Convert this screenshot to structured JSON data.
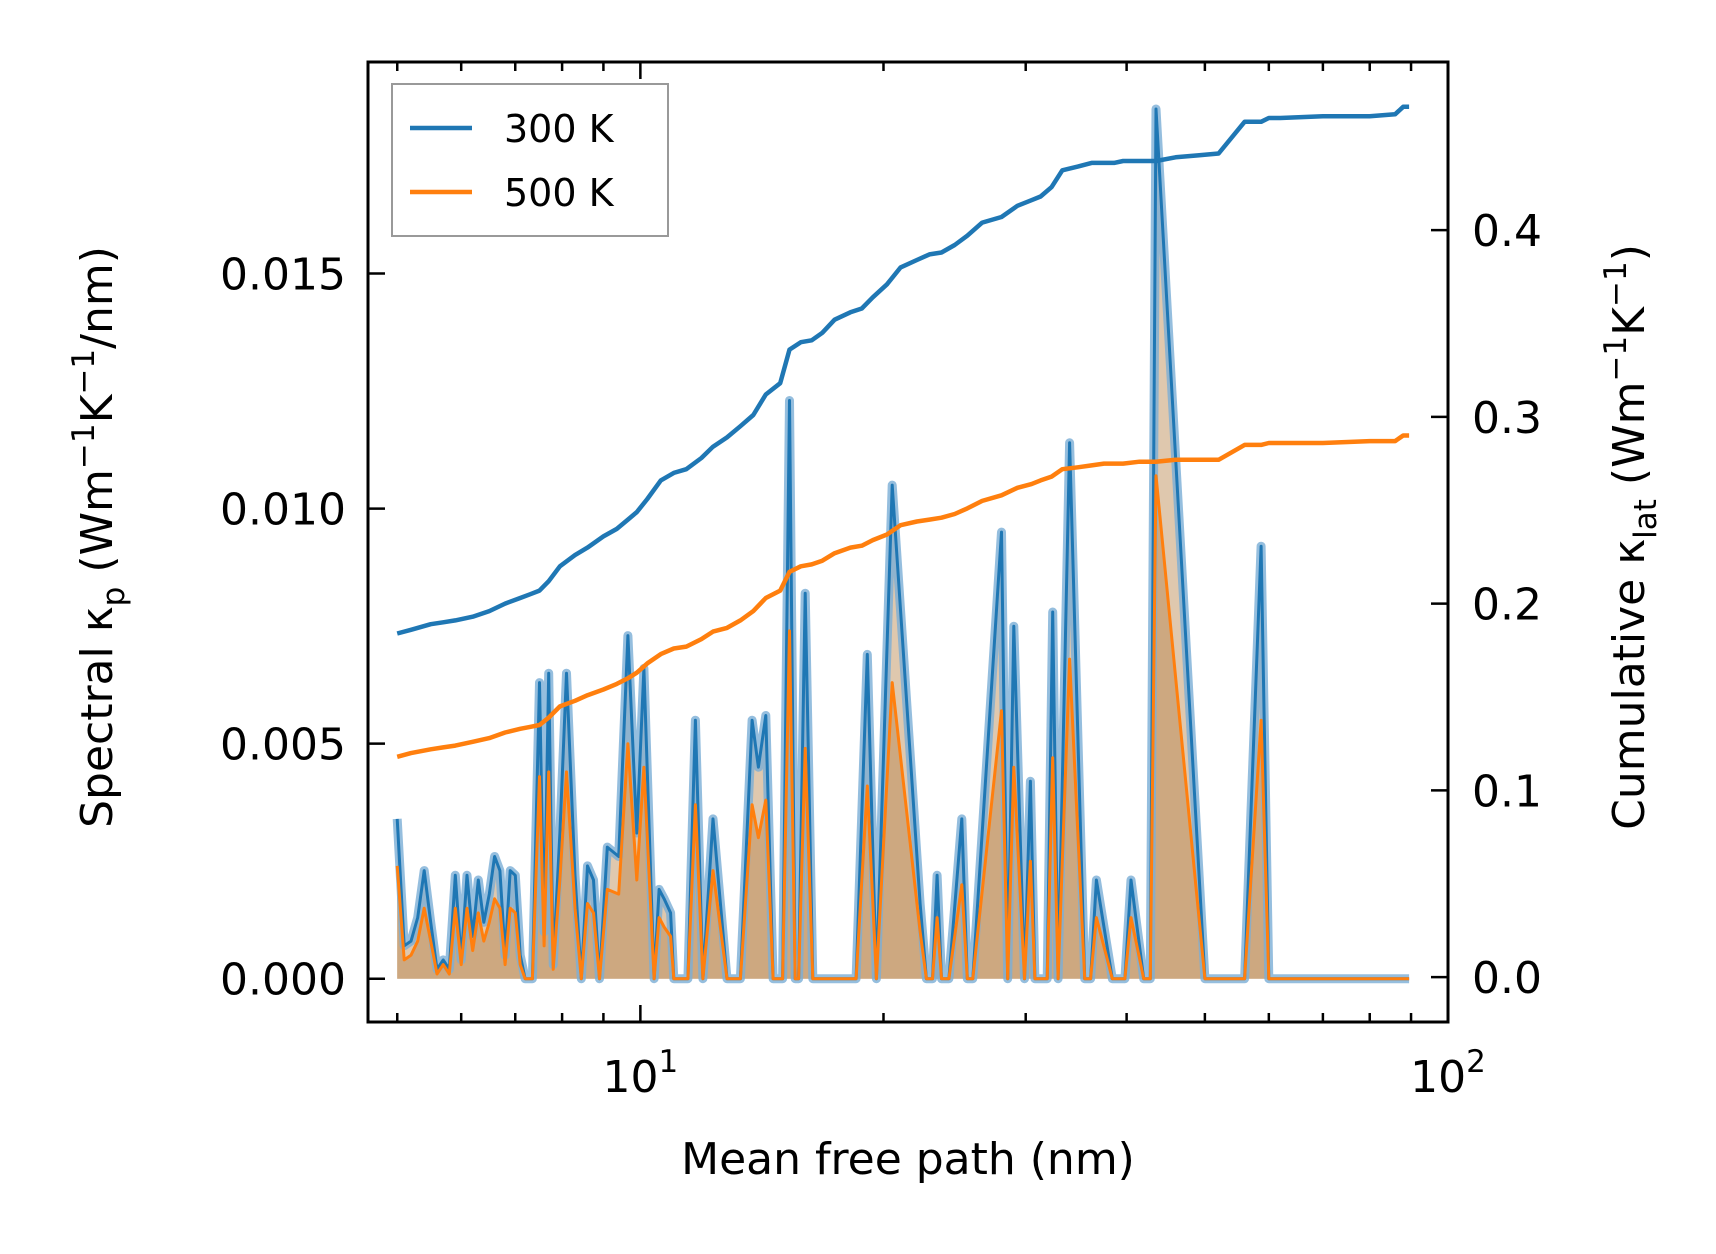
{
  "chart_data": {
    "type": "line",
    "xlabel": "Mean free path (nm)",
    "ylabel_left_parts": {
      "main": "Spectral κ",
      "sub": "p",
      "unit1": " (Wm",
      "sup1": "−1",
      "unit2": "K",
      "sup2": "−1",
      "unit3": "/nm)"
    },
    "ylabel_right_parts": {
      "main": "Cumulative κ",
      "sub": "lat",
      "unit1": " (Wm",
      "sup1": "−1",
      "unit2": "K",
      "sup2": "−1",
      "unit3": ")"
    },
    "xscale": "log",
    "xlim": [
      4.6,
      100
    ],
    "ylim_left": [
      -0.00092,
      0.0195
    ],
    "ylim_right": [
      -0.024,
      0.49
    ],
    "x_ticks": [
      {
        "value": 10,
        "base": "10",
        "exp": "1"
      },
      {
        "value": 100,
        "base": "10",
        "exp": "2"
      }
    ],
    "y_ticks_left": [
      "0.000",
      "0.005",
      "0.010",
      "0.015"
    ],
    "y_ticks_right": [
      "0.0",
      "0.1",
      "0.2",
      "0.3",
      "0.4"
    ],
    "legend": {
      "position": "top-left",
      "entries": [
        "300 K",
        "500 K"
      ]
    },
    "colors": {
      "300K": "#1f77b4",
      "500K": "#ff7f0e",
      "fill": "#c49a6c"
    },
    "spectral_series": [
      {
        "name": "300 K",
        "x": [
          5.0,
          5.1,
          5.2,
          5.3,
          5.4,
          5.5,
          5.6,
          5.7,
          5.8,
          5.9,
          6.0,
          6.1,
          6.2,
          6.3,
          6.4,
          6.5,
          6.6,
          6.7,
          6.8,
          6.9,
          7.0,
          7.1,
          7.2,
          7.35,
          7.5,
          7.6,
          7.7,
          7.8,
          7.95,
          8.1,
          8.3,
          8.45,
          8.6,
          8.75,
          8.9,
          9.1,
          9.4,
          9.65,
          9.9,
          10.1,
          10.4,
          10.55,
          10.7,
          10.9,
          11.0,
          11.2,
          11.45,
          11.7,
          11.95,
          12.3,
          12.8,
          13.3,
          13.75,
          14.0,
          14.3,
          14.6,
          14.9,
          15.0,
          15.3,
          15.55,
          15.7,
          16.0,
          16.35,
          16.7,
          17.3,
          18.5,
          19.1,
          19.6,
          20.5,
          22.2,
          22.6,
          23.0,
          23.3,
          23.6,
          24.1,
          25.0,
          25.4,
          25.8,
          28.0,
          28.5,
          29.0,
          29.9,
          30.4,
          30.8,
          31.9,
          32.4,
          32.9,
          34.0,
          35.5,
          36.1,
          36.7,
          38.4,
          39.1,
          39.8,
          40.5,
          42.0,
          42.8,
          43.5,
          50.0,
          51.8,
          52.8,
          53.8,
          56.0,
          58.7,
          60.0,
          62.0,
          80.0,
          87.0,
          88.3,
          89.5
        ],
        "values": [
          0.0034,
          0.0007,
          0.0008,
          0.0013,
          0.0023,
          0.0012,
          0.0002,
          0.0004,
          0.0002,
          0.0022,
          0.0004,
          0.0022,
          0.0009,
          0.0021,
          0.0012,
          0.0018,
          0.0026,
          0.0023,
          0.0005,
          0.0023,
          0.0022,
          0.0005,
          0.0,
          0.0,
          0.0063,
          0.001,
          0.0065,
          0.0003,
          0.0031,
          0.0065,
          0.0022,
          0.0,
          0.0024,
          0.0021,
          0.0,
          0.0028,
          0.0026,
          0.0073,
          0.0031,
          0.0066,
          0.0,
          0.0019,
          0.0017,
          0.0014,
          0.0,
          0.0,
          0.0,
          0.0055,
          0.0,
          0.0034,
          0.0,
          0.0,
          0.0055,
          0.0045,
          0.0056,
          0.0,
          0.0,
          0.0,
          0.0123,
          0.0,
          0.0,
          0.0082,
          0.0,
          0.0,
          0.0,
          0.0,
          0.0069,
          0.0,
          0.0105,
          0.0016,
          0.0,
          0.0,
          0.0022,
          0.0,
          0.0,
          0.0034,
          0.0,
          0.0,
          0.0095,
          0.0,
          0.0075,
          0.0,
          0.0042,
          0.0,
          0.0,
          0.0078,
          0.0,
          0.0114,
          0.0,
          0.0,
          0.0021,
          0.0,
          0.0,
          0.0,
          0.0021,
          0.0,
          0.0,
          0.0185,
          0.0,
          0.0,
          0.0,
          0.0,
          0.0,
          0.0092,
          0.0,
          0.0,
          0.0,
          0.0,
          0.0,
          0.0
        ]
      },
      {
        "name": "500 K",
        "x": [
          5.0,
          5.1,
          5.2,
          5.3,
          5.4,
          5.5,
          5.6,
          5.7,
          5.8,
          5.9,
          6.0,
          6.1,
          6.2,
          6.3,
          6.4,
          6.5,
          6.6,
          6.7,
          6.8,
          6.9,
          7.0,
          7.1,
          7.2,
          7.35,
          7.5,
          7.6,
          7.7,
          7.8,
          7.95,
          8.1,
          8.3,
          8.45,
          8.6,
          8.75,
          8.9,
          9.1,
          9.4,
          9.65,
          9.9,
          10.1,
          10.4,
          10.55,
          10.7,
          10.9,
          11.0,
          11.2,
          11.45,
          11.7,
          11.95,
          12.3,
          12.8,
          13.3,
          13.75,
          14.0,
          14.3,
          14.6,
          14.9,
          15.0,
          15.3,
          15.55,
          15.7,
          16.0,
          16.35,
          16.7,
          17.3,
          18.5,
          19.1,
          19.6,
          20.5,
          22.2,
          22.6,
          23.0,
          23.3,
          23.6,
          24.1,
          25.0,
          25.4,
          25.8,
          28.0,
          28.5,
          29.0,
          29.9,
          30.4,
          30.8,
          31.9,
          32.4,
          32.9,
          34.0,
          35.5,
          36.1,
          36.7,
          38.4,
          39.1,
          39.8,
          40.5,
          42.0,
          42.8,
          43.5,
          50.0,
          51.8,
          52.8,
          53.8,
          56.0,
          58.7,
          60.0,
          62.0,
          80.0,
          87.0,
          88.3,
          89.5
        ],
        "values": [
          0.0024,
          0.0004,
          0.0005,
          0.0008,
          0.0015,
          0.0008,
          0.0001,
          0.0003,
          0.0001,
          0.0015,
          0.0003,
          0.0015,
          0.0006,
          0.0014,
          0.0008,
          0.0012,
          0.0017,
          0.0015,
          0.0003,
          0.0015,
          0.0014,
          0.0003,
          0.0,
          0.0,
          0.0043,
          0.0007,
          0.0044,
          0.0002,
          0.0021,
          0.0044,
          0.0015,
          0.0,
          0.0016,
          0.0014,
          0.0,
          0.0019,
          0.0018,
          0.005,
          0.0021,
          0.0045,
          0.0,
          0.0013,
          0.0011,
          0.0009,
          0.0,
          0.0,
          0.0,
          0.0037,
          0.0,
          0.0023,
          0.0,
          0.0,
          0.0037,
          0.003,
          0.0038,
          0.0,
          0.0,
          0.0,
          0.0074,
          0.0,
          0.0,
          0.0049,
          0.0,
          0.0,
          0.0,
          0.0,
          0.0041,
          0.0,
          0.0063,
          0.001,
          0.0,
          0.0,
          0.0013,
          0.0,
          0.0,
          0.002,
          0.0,
          0.0,
          0.0057,
          0.0,
          0.0045,
          0.0,
          0.0025,
          0.0,
          0.0,
          0.0047,
          0.0,
          0.0068,
          0.0,
          0.0,
          0.0013,
          0.0,
          0.0,
          0.0,
          0.0013,
          0.0,
          0.0,
          0.0107,
          0.0,
          0.0,
          0.0,
          0.0,
          0.0,
          0.0055,
          0.0,
          0.0,
          0.0,
          0.0,
          0.0,
          0.0
        ]
      }
    ],
    "cumulative_series": [
      {
        "name": "300 K",
        "x": [
          5.0,
          5.2,
          5.5,
          5.7,
          5.9,
          6.2,
          6.5,
          6.8,
          7.1,
          7.3,
          7.5,
          7.7,
          7.95,
          8.3,
          8.6,
          9.0,
          9.35,
          9.65,
          9.9,
          10.2,
          10.6,
          11.0,
          11.4,
          11.9,
          12.3,
          12.8,
          13.3,
          13.8,
          14.3,
          14.9,
          15.3,
          15.8,
          16.3,
          16.8,
          17.4,
          18.2,
          18.8,
          19.4,
          20.2,
          21.0,
          22.0,
          22.8,
          23.6,
          24.5,
          25.4,
          26.5,
          28.0,
          29.3,
          30.5,
          31.3,
          32.3,
          33.3,
          34.8,
          36.2,
          37.5,
          38.6,
          39.6,
          41.5,
          43.5,
          46.0,
          49.0,
          52.0,
          56.0,
          58.7,
          60.0,
          62.0,
          70.0,
          80.0,
          86.0,
          88.0,
          89.5
        ],
        "values": [
          0.184,
          0.186,
          0.189,
          0.19,
          0.191,
          0.193,
          0.196,
          0.2,
          0.203,
          0.205,
          0.207,
          0.212,
          0.22,
          0.226,
          0.23,
          0.236,
          0.24,
          0.245,
          0.249,
          0.256,
          0.266,
          0.27,
          0.272,
          0.278,
          0.284,
          0.289,
          0.295,
          0.301,
          0.312,
          0.318,
          0.336,
          0.34,
          0.341,
          0.345,
          0.352,
          0.356,
          0.358,
          0.364,
          0.371,
          0.38,
          0.384,
          0.387,
          0.388,
          0.392,
          0.397,
          0.404,
          0.407,
          0.413,
          0.416,
          0.418,
          0.423,
          0.432,
          0.434,
          0.436,
          0.436,
          0.436,
          0.437,
          0.437,
          0.437,
          0.439,
          0.44,
          0.441,
          0.458,
          0.458,
          0.46,
          0.46,
          0.461,
          0.461,
          0.462,
          0.466,
          0.466
        ]
      },
      {
        "name": "500 K",
        "x": [
          5.0,
          5.2,
          5.5,
          5.7,
          5.9,
          6.2,
          6.5,
          6.8,
          7.1,
          7.3,
          7.5,
          7.7,
          7.95,
          8.3,
          8.6,
          9.0,
          9.35,
          9.65,
          9.9,
          10.2,
          10.6,
          11.0,
          11.4,
          11.9,
          12.3,
          12.8,
          13.3,
          13.8,
          14.3,
          14.9,
          15.3,
          15.8,
          16.3,
          16.8,
          17.4,
          18.2,
          18.8,
          19.4,
          20.2,
          21.0,
          22.0,
          22.8,
          23.6,
          24.5,
          25.4,
          26.5,
          28.0,
          29.3,
          30.5,
          31.3,
          32.3,
          33.3,
          34.8,
          36.2,
          37.5,
          38.6,
          39.6,
          41.5,
          43.5,
          46.0,
          49.0,
          52.0,
          56.0,
          58.7,
          60.0,
          62.0,
          70.0,
          80.0,
          86.0,
          88.0,
          89.5
        ],
        "values": [
          0.118,
          0.12,
          0.122,
          0.123,
          0.124,
          0.126,
          0.128,
          0.131,
          0.133,
          0.134,
          0.135,
          0.139,
          0.145,
          0.148,
          0.151,
          0.154,
          0.157,
          0.16,
          0.163,
          0.168,
          0.173,
          0.176,
          0.177,
          0.181,
          0.185,
          0.187,
          0.191,
          0.196,
          0.203,
          0.207,
          0.217,
          0.22,
          0.221,
          0.223,
          0.227,
          0.23,
          0.231,
          0.234,
          0.237,
          0.242,
          0.244,
          0.245,
          0.246,
          0.248,
          0.251,
          0.255,
          0.258,
          0.262,
          0.264,
          0.266,
          0.268,
          0.272,
          0.273,
          0.274,
          0.275,
          0.275,
          0.275,
          0.276,
          0.276,
          0.277,
          0.277,
          0.277,
          0.285,
          0.285,
          0.286,
          0.286,
          0.286,
          0.287,
          0.287,
          0.29,
          0.29
        ]
      }
    ]
  }
}
